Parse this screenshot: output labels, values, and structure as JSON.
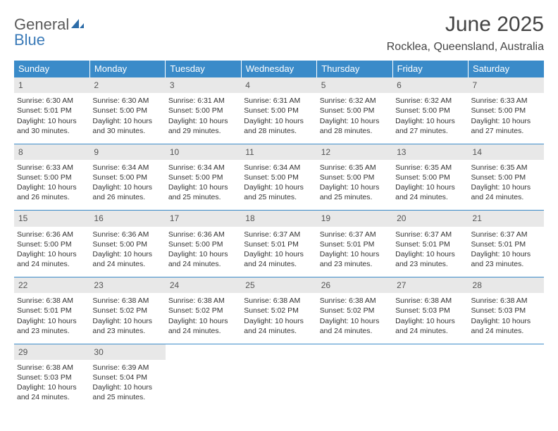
{
  "brand": {
    "part1": "General",
    "part2": "Blue"
  },
  "title": "June 2025",
  "location": "Rocklea, Queensland, Australia",
  "colors": {
    "header_bg": "#3a8bc9",
    "header_text": "#ffffff",
    "daynum_bg": "#e8e8e8",
    "border": "#3a8bc9",
    "brand_gray": "#5a5a5a",
    "brand_blue": "#3a7ab8"
  },
  "weekdays": [
    "Sunday",
    "Monday",
    "Tuesday",
    "Wednesday",
    "Thursday",
    "Friday",
    "Saturday"
  ],
  "weeks": [
    {
      "nums": [
        "1",
        "2",
        "3",
        "4",
        "5",
        "6",
        "7"
      ],
      "cells": [
        {
          "sunrise": "Sunrise: 6:30 AM",
          "sunset": "Sunset: 5:01 PM",
          "daylight": "Daylight: 10 hours and 30 minutes."
        },
        {
          "sunrise": "Sunrise: 6:30 AM",
          "sunset": "Sunset: 5:00 PM",
          "daylight": "Daylight: 10 hours and 30 minutes."
        },
        {
          "sunrise": "Sunrise: 6:31 AM",
          "sunset": "Sunset: 5:00 PM",
          "daylight": "Daylight: 10 hours and 29 minutes."
        },
        {
          "sunrise": "Sunrise: 6:31 AM",
          "sunset": "Sunset: 5:00 PM",
          "daylight": "Daylight: 10 hours and 28 minutes."
        },
        {
          "sunrise": "Sunrise: 6:32 AM",
          "sunset": "Sunset: 5:00 PM",
          "daylight": "Daylight: 10 hours and 28 minutes."
        },
        {
          "sunrise": "Sunrise: 6:32 AM",
          "sunset": "Sunset: 5:00 PM",
          "daylight": "Daylight: 10 hours and 27 minutes."
        },
        {
          "sunrise": "Sunrise: 6:33 AM",
          "sunset": "Sunset: 5:00 PM",
          "daylight": "Daylight: 10 hours and 27 minutes."
        }
      ]
    },
    {
      "nums": [
        "8",
        "9",
        "10",
        "11",
        "12",
        "13",
        "14"
      ],
      "cells": [
        {
          "sunrise": "Sunrise: 6:33 AM",
          "sunset": "Sunset: 5:00 PM",
          "daylight": "Daylight: 10 hours and 26 minutes."
        },
        {
          "sunrise": "Sunrise: 6:34 AM",
          "sunset": "Sunset: 5:00 PM",
          "daylight": "Daylight: 10 hours and 26 minutes."
        },
        {
          "sunrise": "Sunrise: 6:34 AM",
          "sunset": "Sunset: 5:00 PM",
          "daylight": "Daylight: 10 hours and 25 minutes."
        },
        {
          "sunrise": "Sunrise: 6:34 AM",
          "sunset": "Sunset: 5:00 PM",
          "daylight": "Daylight: 10 hours and 25 minutes."
        },
        {
          "sunrise": "Sunrise: 6:35 AM",
          "sunset": "Sunset: 5:00 PM",
          "daylight": "Daylight: 10 hours and 25 minutes."
        },
        {
          "sunrise": "Sunrise: 6:35 AM",
          "sunset": "Sunset: 5:00 PM",
          "daylight": "Daylight: 10 hours and 24 minutes."
        },
        {
          "sunrise": "Sunrise: 6:35 AM",
          "sunset": "Sunset: 5:00 PM",
          "daylight": "Daylight: 10 hours and 24 minutes."
        }
      ]
    },
    {
      "nums": [
        "15",
        "16",
        "17",
        "18",
        "19",
        "20",
        "21"
      ],
      "cells": [
        {
          "sunrise": "Sunrise: 6:36 AM",
          "sunset": "Sunset: 5:00 PM",
          "daylight": "Daylight: 10 hours and 24 minutes."
        },
        {
          "sunrise": "Sunrise: 6:36 AM",
          "sunset": "Sunset: 5:00 PM",
          "daylight": "Daylight: 10 hours and 24 minutes."
        },
        {
          "sunrise": "Sunrise: 6:36 AM",
          "sunset": "Sunset: 5:00 PM",
          "daylight": "Daylight: 10 hours and 24 minutes."
        },
        {
          "sunrise": "Sunrise: 6:37 AM",
          "sunset": "Sunset: 5:01 PM",
          "daylight": "Daylight: 10 hours and 24 minutes."
        },
        {
          "sunrise": "Sunrise: 6:37 AM",
          "sunset": "Sunset: 5:01 PM",
          "daylight": "Daylight: 10 hours and 23 minutes."
        },
        {
          "sunrise": "Sunrise: 6:37 AM",
          "sunset": "Sunset: 5:01 PM",
          "daylight": "Daylight: 10 hours and 23 minutes."
        },
        {
          "sunrise": "Sunrise: 6:37 AM",
          "sunset": "Sunset: 5:01 PM",
          "daylight": "Daylight: 10 hours and 23 minutes."
        }
      ]
    },
    {
      "nums": [
        "22",
        "23",
        "24",
        "25",
        "26",
        "27",
        "28"
      ],
      "cells": [
        {
          "sunrise": "Sunrise: 6:38 AM",
          "sunset": "Sunset: 5:01 PM",
          "daylight": "Daylight: 10 hours and 23 minutes."
        },
        {
          "sunrise": "Sunrise: 6:38 AM",
          "sunset": "Sunset: 5:02 PM",
          "daylight": "Daylight: 10 hours and 23 minutes."
        },
        {
          "sunrise": "Sunrise: 6:38 AM",
          "sunset": "Sunset: 5:02 PM",
          "daylight": "Daylight: 10 hours and 24 minutes."
        },
        {
          "sunrise": "Sunrise: 6:38 AM",
          "sunset": "Sunset: 5:02 PM",
          "daylight": "Daylight: 10 hours and 24 minutes."
        },
        {
          "sunrise": "Sunrise: 6:38 AM",
          "sunset": "Sunset: 5:02 PM",
          "daylight": "Daylight: 10 hours and 24 minutes."
        },
        {
          "sunrise": "Sunrise: 6:38 AM",
          "sunset": "Sunset: 5:03 PM",
          "daylight": "Daylight: 10 hours and 24 minutes."
        },
        {
          "sunrise": "Sunrise: 6:38 AM",
          "sunset": "Sunset: 5:03 PM",
          "daylight": "Daylight: 10 hours and 24 minutes."
        }
      ]
    },
    {
      "nums": [
        "29",
        "30",
        "",
        "",
        "",
        "",
        ""
      ],
      "cells": [
        {
          "sunrise": "Sunrise: 6:38 AM",
          "sunset": "Sunset: 5:03 PM",
          "daylight": "Daylight: 10 hours and 24 minutes."
        },
        {
          "sunrise": "Sunrise: 6:39 AM",
          "sunset": "Sunset: 5:04 PM",
          "daylight": "Daylight: 10 hours and 25 minutes."
        },
        null,
        null,
        null,
        null,
        null
      ]
    }
  ]
}
